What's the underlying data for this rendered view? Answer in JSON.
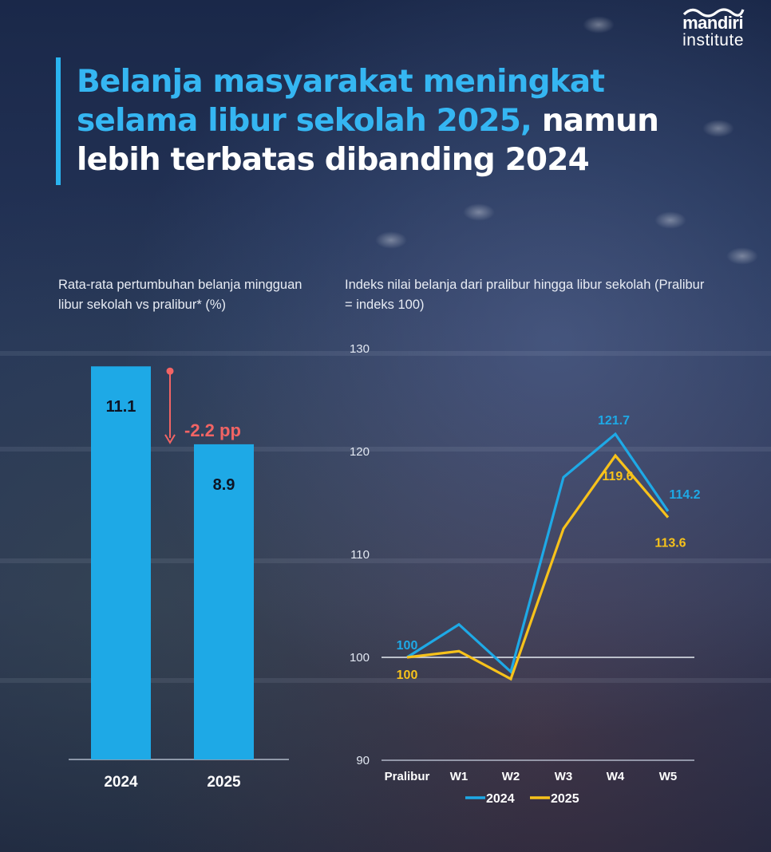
{
  "logo": {
    "line1": "mandiri",
    "line2": "institute"
  },
  "headline": {
    "part1": "Belanja masyarakat meningkat selama libur sekolah 2025,",
    "part2": " namun lebih terbatas dibanding 2024"
  },
  "colors": {
    "accent": "#2ab4f0",
    "series_2024": "#1ea9e6",
    "series_2025": "#f7c21b",
    "delta": "#f26464"
  },
  "chart_data": [
    {
      "type": "bar",
      "subtitle": "Rata-rata pertumbuhan belanja mingguan libur sekolah vs pralibur* (%)",
      "categories": [
        "2024",
        "2025"
      ],
      "values": [
        11.1,
        8.9
      ],
      "value_labels": [
        "11.1",
        "8.9"
      ],
      "annotation": "-2.2 pp",
      "ylim": [
        0,
        13.5
      ],
      "grid": false
    },
    {
      "type": "line",
      "subtitle": "Indeks nilai belanja dari pralibur hingga libur sekolah (Pralibur = indeks 100)",
      "categories": [
        "Pralibur",
        "W1",
        "W2",
        "W3",
        "W4",
        "W5"
      ],
      "series": [
        {
          "name": "2024",
          "values": [
            100,
            103.2,
            98.6,
            117.5,
            121.7,
            114.2
          ]
        },
        {
          "name": "2025",
          "values": [
            100,
            100.6,
            97.9,
            112.5,
            119.6,
            113.6
          ]
        }
      ],
      "point_labels": {
        "2024": [
          "100",
          "",
          "",
          "",
          "121.7",
          "114.2"
        ],
        "2025": [
          "100",
          "",
          "",
          "",
          "119.6",
          "113.6"
        ]
      },
      "yticks": [
        "130",
        "120",
        "110",
        "100",
        "90"
      ],
      "ylim": [
        90,
        130
      ],
      "reference_line": 100,
      "legend": "bottom-center",
      "grid": false
    }
  ]
}
